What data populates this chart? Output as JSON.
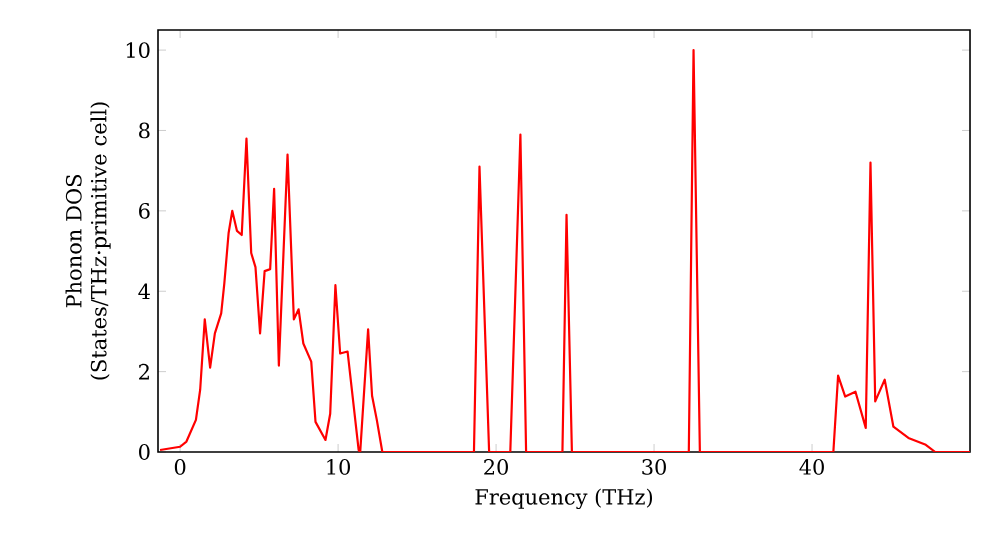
{
  "chart_data": {
    "type": "line",
    "xlabel": "Frequency (THz)",
    "ylabel": "Phonon DOS (States/THz·primitive cell)",
    "xlim": [
      -1.4,
      50
    ],
    "ylim": [
      0,
      10.5
    ],
    "xticks": [
      0,
      10,
      20,
      30,
      40
    ],
    "yticks": [
      0,
      2,
      4,
      6,
      8,
      10
    ],
    "x": [
      -1.27,
      0,
      0.4,
      1.0,
      1.27,
      1.56,
      1.9,
      2.2,
      2.6,
      2.8,
      3.07,
      3.3,
      3.6,
      3.9,
      4.2,
      4.5,
      4.77,
      5.06,
      5.35,
      5.7,
      5.95,
      6.25,
      6.8,
      7.2,
      7.5,
      7.8,
      8.3,
      8.57,
      9.2,
      9.5,
      9.83,
      10.13,
      10.6,
      11.3,
      11.4,
      11.9,
      12.15,
      12.45,
      12.8,
      18.6,
      18.95,
      19.56,
      20.9,
      21.54,
      21.9,
      24.2,
      24.46,
      24.8,
      32.2,
      32.5,
      32.9,
      41.35,
      41.65,
      42.1,
      42.75,
      43.4,
      43.7,
      44.0,
      44.6,
      45.15,
      46.1,
      47.2,
      47.8,
      50
    ],
    "series": [
      {
        "color": "#ff0000",
        "values": [
          0.05,
          0.13,
          0.26,
          0.8,
          1.55,
          3.3,
          2.1,
          2.95,
          3.45,
          4.2,
          5.45,
          6.0,
          5.5,
          5.4,
          7.8,
          4.95,
          4.6,
          2.95,
          4.5,
          4.55,
          6.55,
          2.15,
          7.4,
          3.3,
          3.55,
          2.7,
          2.25,
          0.75,
          0.3,
          0.95,
          4.15,
          2.45,
          2.5,
          0.05,
          0,
          3.05,
          1.4,
          0.8,
          0,
          0,
          7.1,
          0,
          0,
          7.9,
          0,
          0,
          5.9,
          0,
          0,
          10.0,
          0,
          0,
          1.9,
          1.38,
          1.5,
          0.6,
          7.2,
          1.26,
          1.8,
          0.63,
          0.35,
          0.18,
          0,
          0
        ]
      }
    ]
  }
}
